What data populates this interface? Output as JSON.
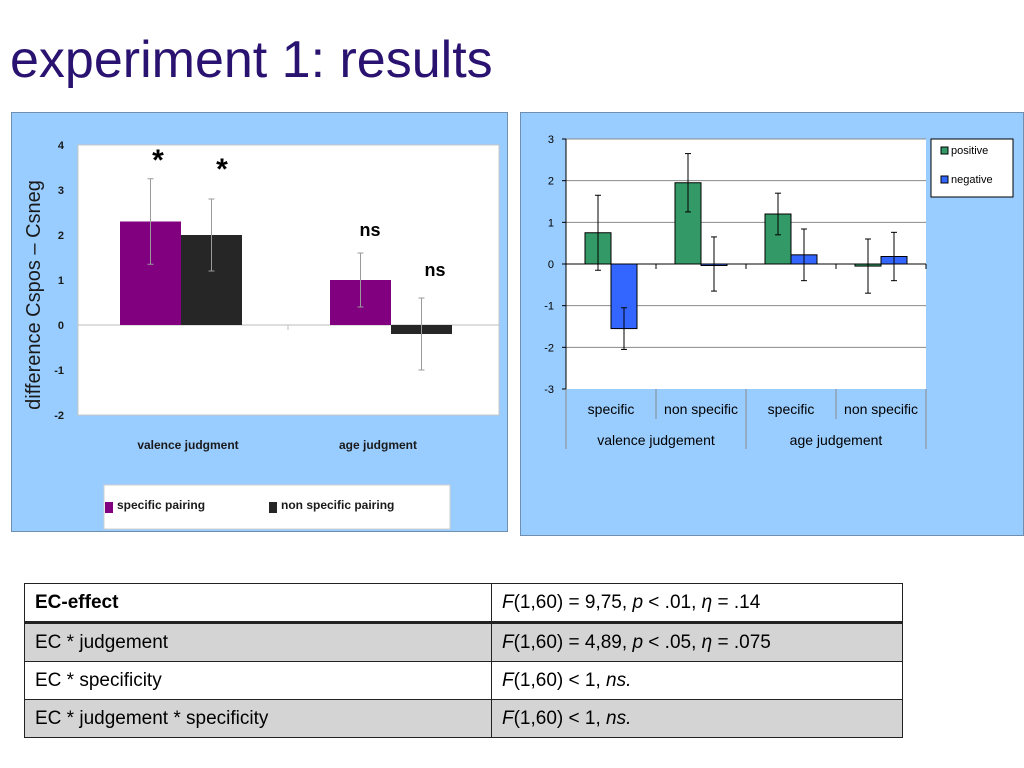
{
  "page": {
    "title": "experiment 1: results"
  },
  "chart_data": [
    {
      "type": "bar",
      "ylabel": "difference Cspos – Csneg",
      "ylim": [
        -2,
        4
      ],
      "yticks": [
        "4",
        "3",
        "2",
        "1",
        "0",
        "-1",
        "-2"
      ],
      "ytick_values": [
        4,
        3,
        2,
        1,
        0,
        -1,
        -2
      ],
      "categories": [
        "valence judgment",
        "age judgment"
      ],
      "series": [
        {
          "name": "specific pairing",
          "values": [
            2.3,
            1.0
          ],
          "color": "#800080",
          "errors": [
            0.95,
            0.6
          ]
        },
        {
          "name": "non specific pairing",
          "values": [
            2.0,
            -0.2
          ],
          "color": "#262626",
          "errors": [
            0.8,
            0.8
          ]
        }
      ],
      "annotations": [
        "*",
        "*",
        "ns",
        "ns"
      ],
      "legend": "bottom",
      "grid": false
    },
    {
      "type": "bar",
      "ylim": [
        -3,
        3
      ],
      "yticks": [
        "3",
        "2",
        "1",
        "0",
        "-1",
        "-2",
        "-3"
      ],
      "ytick_values": [
        3,
        2,
        1,
        0,
        -1,
        -2,
        -3
      ],
      "categories": [
        "specific",
        "non specific",
        "specific",
        "non specific"
      ],
      "groups": [
        "valence judgement",
        "age judgement"
      ],
      "series": [
        {
          "name": "positive",
          "values": [
            0.75,
            1.95,
            1.2,
            -0.05
          ],
          "color": "#339966",
          "errors": [
            0.9,
            0.7,
            0.5,
            0.65
          ]
        },
        {
          "name": "negative",
          "values": [
            -1.55,
            0.0,
            0.22,
            0.18
          ],
          "color": "#3366ff",
          "errors": [
            0.5,
            0.65,
            0.62,
            0.58
          ]
        }
      ],
      "legend": "top-right",
      "grid": true
    }
  ],
  "table": {
    "rows": [
      {
        "label": "EC-effect",
        "F": "F",
        "a": "(1,60) = 9,75, ",
        "p": "p",
        "b": " < .01, ",
        "eta": "η",
        "c": " = .14"
      },
      {
        "label": "EC * judgement",
        "F": "F",
        "a": "(1,60) = 4,89, ",
        "p": "p",
        "b": " < .05, ",
        "eta": "η",
        "c": " = .075"
      },
      {
        "label": "EC * specificity",
        "F": "F",
        "a": "(1,60) < 1, ",
        "ns": "ns."
      },
      {
        "label": "EC * judgement * specificity",
        "F": "F",
        "a": "(1,60) < 1, ",
        "ns": "ns."
      }
    ]
  }
}
